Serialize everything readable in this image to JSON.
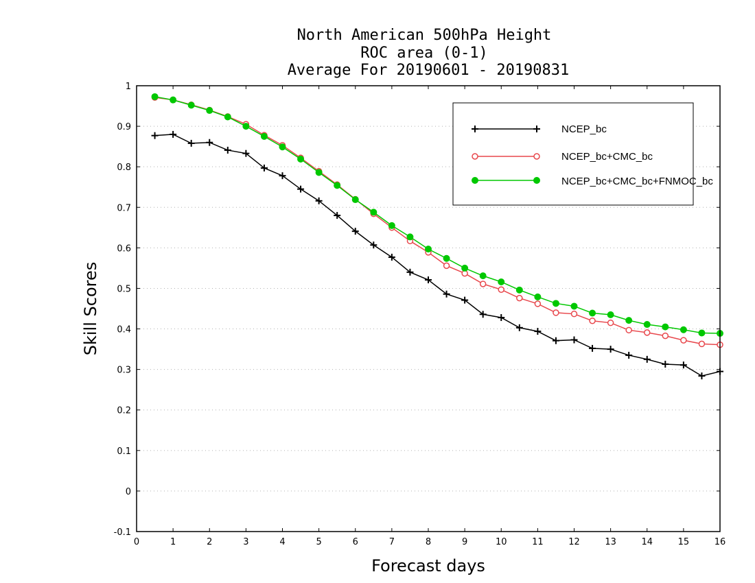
{
  "chart_data": {
    "type": "line",
    "title": [
      "North American 500hPa Height",
      "ROC area (0-1)",
      "Average For 20190601 - 20190831"
    ],
    "xlabel": "Forecast days",
    "ylabel": "Skill Scores",
    "xlim": [
      0,
      16
    ],
    "ylim": [
      -0.1,
      1
    ],
    "xticks": [
      "0",
      "1",
      "2",
      "3",
      "4",
      "5",
      "6",
      "7",
      "8",
      "9",
      "10",
      "11",
      "12",
      "13",
      "14",
      "15",
      "16"
    ],
    "yticks": [
      "-0.1",
      "0",
      "0.1",
      "0.2",
      "0.3",
      "0.4",
      "0.5",
      "0.6",
      "0.7",
      "0.8",
      "0.9",
      "1"
    ],
    "grid": true,
    "legend_position": "top-right",
    "x": [
      0.5,
      1,
      1.5,
      2,
      2.5,
      3,
      3.5,
      4,
      4.5,
      5,
      5.5,
      6,
      6.5,
      7,
      7.5,
      8,
      8.5,
      9,
      9.5,
      10,
      10.5,
      11,
      11.5,
      12,
      12.5,
      13,
      13.5,
      14,
      14.5,
      15,
      15.5,
      16
    ],
    "series": [
      {
        "name": "NCEP_bc",
        "color": "#000000",
        "marker": "plus",
        "values": [
          0.877,
          0.88,
          0.858,
          0.86,
          0.841,
          0.833,
          0.797,
          0.778,
          0.745,
          0.716,
          0.68,
          0.641,
          0.607,
          0.577,
          0.54,
          0.521,
          0.486,
          0.471,
          0.436,
          0.428,
          0.403,
          0.394,
          0.371,
          0.373,
          0.352,
          0.35,
          0.335,
          0.325,
          0.313,
          0.311,
          0.284,
          0.295
        ]
      },
      {
        "name": "NCEP_bc+CMC_bc",
        "color": "#e8474c",
        "marker": "open-circle",
        "values": [
          0.971,
          0.965,
          0.953,
          0.94,
          0.924,
          0.905,
          0.878,
          0.853,
          0.822,
          0.789,
          0.756,
          0.72,
          0.684,
          0.65,
          0.617,
          0.589,
          0.556,
          0.537,
          0.511,
          0.497,
          0.476,
          0.462,
          0.44,
          0.437,
          0.42,
          0.415,
          0.397,
          0.391,
          0.383,
          0.372,
          0.363,
          0.361
        ]
      },
      {
        "name": "NCEP_bc+CMC_bc+FNMOC_bc",
        "color": "#00c800",
        "marker": "filled-circle",
        "values": [
          0.973,
          0.965,
          0.952,
          0.939,
          0.923,
          0.9,
          0.875,
          0.849,
          0.819,
          0.786,
          0.754,
          0.719,
          0.688,
          0.655,
          0.627,
          0.597,
          0.574,
          0.55,
          0.531,
          0.516,
          0.496,
          0.479,
          0.463,
          0.456,
          0.439,
          0.435,
          0.421,
          0.411,
          0.405,
          0.398,
          0.39,
          0.389
        ]
      }
    ]
  }
}
